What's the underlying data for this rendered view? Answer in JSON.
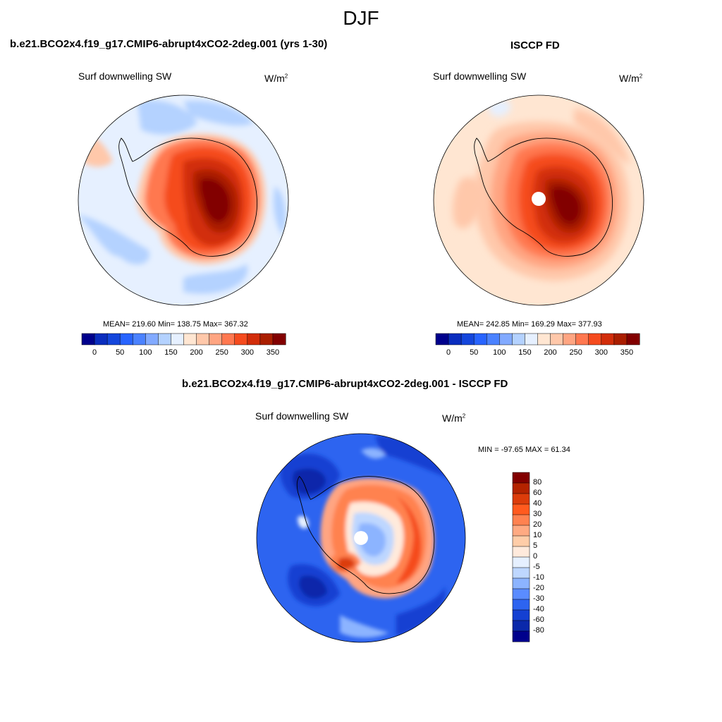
{
  "figure": {
    "title": "DJF"
  },
  "panels": {
    "model": {
      "title": "b.e21.BCO2x4.f19_g17.CMIP6-abrupt4xCO2-2deg.001 (yrs 1-30)",
      "variable": "Surf downwelling SW",
      "units_base": "W/m",
      "units_exp": "2",
      "stats": "MEAN= 219.60  Min= 138.75  Max= 367.32"
    },
    "obs": {
      "title": "ISCCP FD",
      "variable": "Surf downwelling SW",
      "units_base": "W/m",
      "units_exp": "2",
      "stats": "MEAN= 242.85  Min= 169.29  Max= 377.93"
    },
    "diff": {
      "title": "b.e21.BCO2x4.f19_g17.CMIP6-abrupt4xCO2-2deg.001 - ISCCP FD",
      "variable": "Surf downwelling SW",
      "units_base": "W/m",
      "units_exp": "2",
      "stats": "MIN = -97.65 MAX =  61.34"
    }
  },
  "colorbars": {
    "abs": {
      "ticks": [
        "0",
        "50",
        "100",
        "150",
        "200",
        "250",
        "300",
        "350"
      ],
      "colors": [
        "#00008c",
        "#0a2dbe",
        "#1446dc",
        "#2864ff",
        "#4b82ff",
        "#82aaff",
        "#b4d2ff",
        "#e6f0ff",
        "#ffe6d2",
        "#ffc8aa",
        "#ffa582",
        "#ff7850",
        "#f54b1e",
        "#d22d0a",
        "#aa1e00",
        "#820000"
      ]
    },
    "diff": {
      "ticks": [
        "80",
        "60",
        "40",
        "30",
        "20",
        "10",
        "5",
        "0",
        "-5",
        "-10",
        "-20",
        "-30",
        "-40",
        "-60",
        "-80"
      ],
      "colors": [
        "#820000",
        "#b42300",
        "#dc3c0a",
        "#ff5a1e",
        "#ff8250",
        "#ffaa82",
        "#ffcda8",
        "#ffeadc",
        "#e6f0ff",
        "#bed7ff",
        "#8cb4ff",
        "#5a8cff",
        "#2d64f0",
        "#1440d2",
        "#0a28aa",
        "#00008c"
      ]
    }
  },
  "chart_data": [
    {
      "type": "heatmap",
      "title": "b.e21.BCO2x4.f19_g17.CMIP6-abrupt4xCO2-2deg.001 (yrs 1-30)",
      "subtitle": "Surf downwelling SW",
      "units": "W/m2",
      "projection": "south polar stereographic",
      "mean": 219.6,
      "min": 138.75,
      "max": 367.32,
      "levels": [
        0,
        25,
        50,
        75,
        100,
        125,
        150,
        175,
        200,
        225,
        250,
        275,
        300,
        325,
        350
      ]
    },
    {
      "type": "heatmap",
      "title": "ISCCP FD",
      "subtitle": "Surf downwelling SW",
      "units": "W/m2",
      "projection": "south polar stereographic",
      "mean": 242.85,
      "min": 169.29,
      "max": 377.93,
      "levels": [
        0,
        25,
        50,
        75,
        100,
        125,
        150,
        175,
        200,
        225,
        250,
        275,
        300,
        325,
        350
      ]
    },
    {
      "type": "heatmap",
      "title": "b.e21.BCO2x4.f19_g17.CMIP6-abrupt4xCO2-2deg.001 - ISCCP FD",
      "subtitle": "Surf downwelling SW",
      "units": "W/m2",
      "projection": "south polar stereographic",
      "min": -97.65,
      "max": 61.34,
      "levels": [
        -80,
        -60,
        -40,
        -30,
        -20,
        -10,
        -5,
        0,
        5,
        10,
        20,
        30,
        40,
        60,
        80
      ]
    }
  ]
}
